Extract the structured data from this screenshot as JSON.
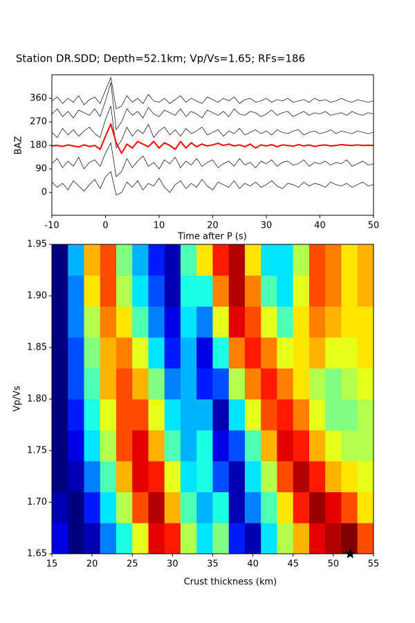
{
  "chart_data": [
    {
      "type": "line",
      "title": "Station DR.SDD; Depth=52.1km; Vp/Vs=1.65; RFs=186",
      "xlabel": "Time after P (s)",
      "ylabel": "BAZ",
      "xlim": [
        -10,
        50
      ],
      "xticks": [
        -10,
        0,
        10,
        20,
        30,
        40,
        50
      ],
      "ylim": [
        -87,
        450
      ],
      "yticks": [
        0,
        90,
        180,
        270,
        360
      ],
      "x": [
        -10,
        -9,
        -8,
        -7,
        -6,
        -5,
        -4,
        -3,
        -2,
        -1,
        0,
        1,
        2,
        3,
        4,
        5,
        6,
        7,
        8,
        9,
        10,
        11,
        12,
        13,
        14,
        15,
        16,
        17,
        18,
        19,
        20,
        21,
        22,
        23,
        24,
        25,
        26,
        27,
        28,
        29,
        30,
        31,
        32,
        33,
        34,
        35,
        36,
        37,
        38,
        39,
        40,
        41,
        42,
        43,
        44,
        45,
        46,
        47,
        48,
        49,
        50
      ],
      "series": [
        {
          "color": "#000000",
          "linewidth": 0.7,
          "values": [
            40,
            20,
            35,
            10,
            45,
            25,
            5,
            30,
            50,
            15,
            60,
            80,
            -10,
            0,
            40,
            20,
            45,
            10,
            35,
            25,
            55,
            20,
            0,
            30,
            45,
            15,
            35,
            20,
            50,
            25,
            10,
            40,
            30,
            20,
            45,
            15,
            35,
            25,
            40,
            20,
            30,
            45,
            25,
            15,
            35,
            30,
            20,
            40,
            25,
            35,
            30,
            20,
            40,
            30,
            25,
            35,
            20,
            30,
            40,
            25,
            30
          ]
        },
        {
          "color": "#000000",
          "linewidth": 0.7,
          "values": [
            110,
            130,
            95,
            120,
            100,
            135,
            90,
            115,
            125,
            100,
            150,
            190,
            60,
            80,
            130,
            95,
            120,
            140,
            100,
            115,
            90,
            125,
            110,
            135,
            95,
            120,
            105,
            130,
            100,
            115,
            125,
            95,
            110,
            120,
            100,
            130,
            105,
            115,
            95,
            120,
            110,
            125,
            100,
            115,
            120,
            105,
            110,
            125,
            100,
            115,
            110,
            120,
            105,
            115,
            110,
            125,
            100,
            110,
            120,
            105,
            110
          ]
        },
        {
          "color": "#000000",
          "linewidth": 0.7,
          "values": [
            230,
            210,
            245,
            220,
            240,
            215,
            235,
            250,
            225,
            210,
            280,
            330,
            170,
            200,
            250,
            215,
            240,
            225,
            260,
            210,
            235,
            250,
            220,
            240,
            215,
            245,
            225,
            235,
            250,
            220,
            230,
            240,
            215,
            235,
            225,
            245,
            220,
            230,
            240,
            225,
            235,
            220,
            240,
            230,
            225,
            235,
            240,
            220,
            230,
            235,
            225,
            230,
            240,
            225,
            235,
            230,
            225,
            235,
            230,
            225,
            230
          ]
        },
        {
          "color": "#000000",
          "linewidth": 0.7,
          "values": [
            300,
            320,
            290,
            310,
            285,
            315,
            305,
            295,
            320,
            290,
            350,
            420,
            240,
            270,
            320,
            295,
            310,
            285,
            325,
            300,
            290,
            315,
            305,
            295,
            320,
            290,
            310,
            300,
            285,
            315,
            305,
            295,
            310,
            290,
            320,
            300,
            295,
            310,
            305,
            290,
            300,
            315,
            295,
            305,
            310,
            290,
            300,
            310,
            295,
            305,
            300,
            310,
            295,
            300,
            305,
            295,
            310,
            300,
            295,
            305,
            300
          ]
        },
        {
          "color": "#000000",
          "linewidth": 0.7,
          "values": [
            350,
            365,
            340,
            360,
            345,
            370,
            335,
            355,
            365,
            340,
            390,
            440,
            320,
            330,
            370,
            345,
            360,
            340,
            375,
            350,
            345,
            360,
            340,
            355,
            370,
            345,
            360,
            350,
            340,
            365,
            355,
            345,
            360,
            350,
            365,
            340,
            355,
            360,
            345,
            350,
            360,
            345,
            355,
            350,
            360,
            345,
            350,
            355,
            345,
            360,
            350,
            355,
            345,
            350,
            360,
            350,
            345,
            355,
            350,
            345,
            350
          ]
        },
        {
          "color": "#ff0000",
          "linewidth": 2,
          "values": [
            178,
            180,
            176,
            182,
            178,
            174,
            182,
            176,
            180,
            165,
            215,
            262,
            190,
            150,
            185,
            170,
            195,
            185,
            175,
            195,
            170,
            190,
            180,
            165,
            195,
            170,
            190,
            175,
            185,
            178,
            182,
            188,
            180,
            185,
            178,
            182,
            175,
            185,
            170,
            182,
            178,
            183,
            175,
            182,
            180,
            177,
            183,
            178,
            182,
            176,
            180,
            182,
            178,
            180,
            183,
            181,
            180,
            182,
            180,
            181,
            180
          ]
        }
      ]
    },
    {
      "type": "heatmap",
      "xlabel": "Crust thickness (km)",
      "ylabel": "Vp/Vs",
      "xlim": [
        15,
        55
      ],
      "xticks": [
        15,
        20,
        25,
        30,
        35,
        40,
        45,
        50,
        55
      ],
      "ylim": [
        1.65,
        1.95
      ],
      "yticks": [
        1.65,
        {
          "value": 1.7,
          "label": "1.70"
        },
        1.75,
        {
          "value": 1.8,
          "label": "1.80"
        },
        1.85,
        {
          "value": 1.9,
          "label": "1.90"
        },
        1.95
      ],
      "colormap": "jet",
      "zlim": [
        -1,
        1
      ],
      "x_edges": [
        15,
        17,
        19,
        21,
        23,
        25,
        27,
        29,
        31,
        33,
        35,
        37,
        39,
        41,
        43,
        45,
        47,
        49,
        51,
        53,
        55
      ],
      "y_edges": [
        1.65,
        1.68,
        1.71,
        1.74,
        1.77,
        1.8,
        1.83,
        1.86,
        1.89,
        1.92,
        1.95
      ],
      "z": [
        [
          -0.8,
          -1,
          -0.9,
          -0.5,
          -0.2,
          0.2,
          0.8,
          0.7,
          0.1,
          -0.3,
          0,
          -0.7,
          -0.9,
          -0.3,
          0.1,
          0.4,
          0.8,
          0.9,
          1,
          0.6
        ],
        [
          -0.9,
          -1,
          -0.7,
          -0.3,
          0.1,
          0.6,
          0.9,
          0.4,
          -0.1,
          -0.4,
          -0.2,
          -0.9,
          -0.5,
          -0.1,
          0.3,
          0.7,
          0.95,
          0.8,
          0.6,
          0.3
        ],
        [
          -1,
          -0.9,
          -0.5,
          -0.1,
          0.4,
          0.8,
          0.7,
          0.2,
          -0.3,
          -0.2,
          -0.6,
          -0.9,
          -0.3,
          0.1,
          0.6,
          0.9,
          0.7,
          0.4,
          0.3,
          0.2
        ],
        [
          -1,
          -0.8,
          -0.3,
          0.1,
          0.6,
          0.8,
          0.4,
          -0.1,
          -0.4,
          -0.2,
          -0.8,
          -0.6,
          -0.1,
          0.4,
          0.8,
          0.7,
          0.4,
          0.2,
          0.1,
          0.1
        ],
        [
          -1,
          -0.7,
          -0.2,
          0.2,
          0.6,
          0.6,
          0.2,
          -0.3,
          -0.4,
          -0.4,
          -0.9,
          -0.3,
          0.2,
          0.6,
          0.7,
          0.5,
          0.2,
          0,
          0,
          0.1
        ],
        [
          -1,
          -0.6,
          -0.1,
          0.4,
          0.6,
          0.4,
          0,
          -0.5,
          -0.4,
          -0.7,
          -0.6,
          0.1,
          0.5,
          0.7,
          0.5,
          0.3,
          0.1,
          0,
          0.1,
          0.2
        ],
        [
          -1,
          -0.6,
          0,
          0.4,
          0.5,
          0.2,
          -0.3,
          -0.7,
          -0.4,
          -0.8,
          -0.2,
          0.5,
          0.7,
          0.5,
          0.2,
          0.3,
          0.4,
          0.2,
          0.2,
          0.3
        ],
        [
          -1,
          -0.5,
          0.1,
          0.5,
          0.3,
          -0.1,
          -0.5,
          -0.8,
          -0.3,
          -0.5,
          0.2,
          0.8,
          0.6,
          0.2,
          -0.1,
          0.3,
          0.5,
          0.4,
          0.3,
          0.3
        ],
        [
          -1,
          -0.5,
          0.3,
          0.6,
          0.1,
          -0.3,
          -0.6,
          -0.9,
          -0.2,
          -0.2,
          0.5,
          0.9,
          0.5,
          -0.1,
          -0.3,
          0.2,
          0.6,
          0.5,
          0.3,
          0.4
        ],
        [
          -1,
          -0.4,
          0.4,
          0.6,
          0,
          -0.4,
          -0.7,
          -0.9,
          -0.1,
          0.3,
          0.7,
          0.9,
          0.3,
          -0.3,
          -0.3,
          0.1,
          0.6,
          0.5,
          0.3,
          0.4
        ]
      ],
      "best": {
        "x": 52.1,
        "y": 1.65
      },
      "best_color": "#000000"
    }
  ]
}
